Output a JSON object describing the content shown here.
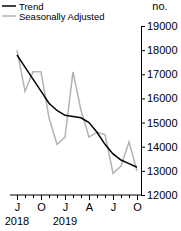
{
  "chart_data": {
    "type": "line",
    "y_label": "no.",
    "categories": [
      "J",
      null,
      null,
      "O",
      null,
      null,
      "J",
      null,
      null,
      "A",
      null,
      null,
      "J",
      null,
      null,
      "O"
    ],
    "annotations": [
      {
        "text": "2018",
        "at": 0
      },
      {
        "text": "2019",
        "at": 6
      }
    ],
    "series": [
      {
        "name": "Trend",
        "color": "#000000",
        "values": [
          17800,
          17300,
          16800,
          16300,
          15800,
          15500,
          15300,
          15250,
          15200,
          15000,
          14600,
          14100,
          13700,
          13450,
          13300,
          13150
        ]
      },
      {
        "name": "Seasonally Adjusted",
        "color": "#b3b3b3",
        "values": [
          18000,
          16300,
          17100,
          17100,
          15200,
          14100,
          14400,
          17100,
          15500,
          14400,
          14600,
          14500,
          12900,
          13200,
          14200,
          13000
        ]
      }
    ],
    "ylim": [
      12000,
      19000
    ],
    "yticks": [
      12000,
      13000,
      14000,
      15000,
      16000,
      17000,
      18000,
      19000
    ],
    "legend": "top-left"
  }
}
